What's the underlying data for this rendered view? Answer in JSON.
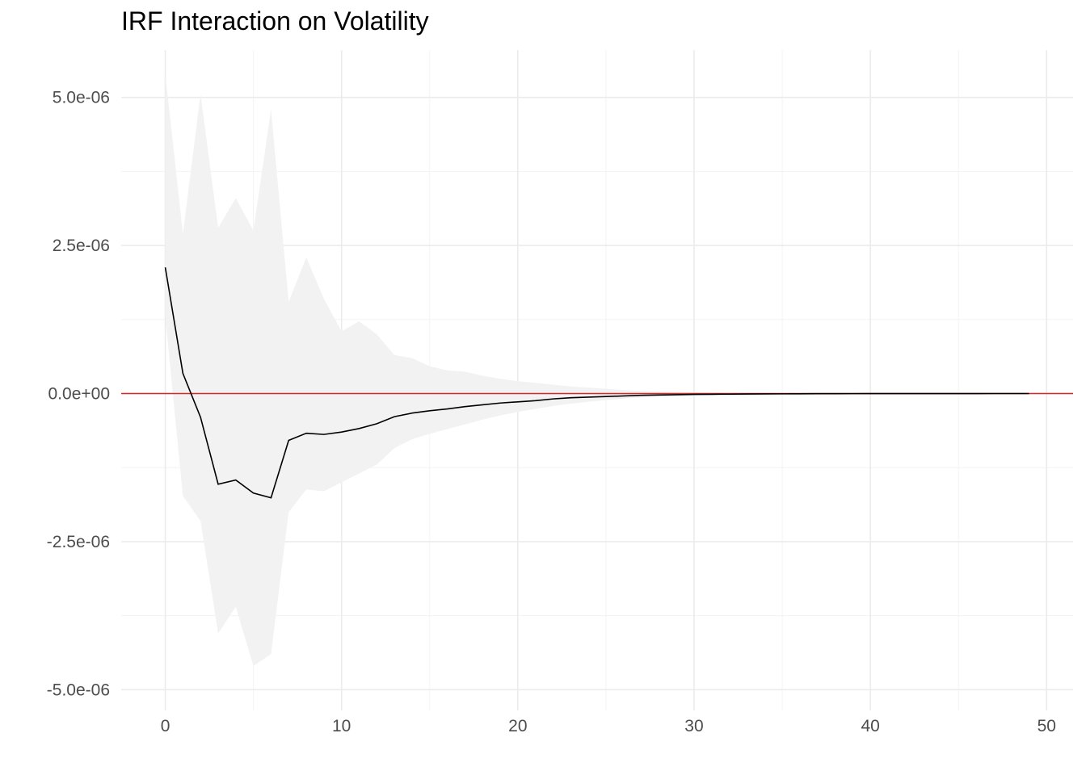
{
  "chart_data": {
    "type": "line",
    "title": "IRF Interaction on Volatility",
    "xlabel": "",
    "ylabel": "",
    "xlim": [
      -2.5,
      51.5
    ],
    "ylim": [
      -5.35e-06,
      5.8e-06
    ],
    "x_ticks": [
      0,
      10,
      20,
      30,
      40,
      50
    ],
    "x_tick_labels": [
      "0",
      "10",
      "20",
      "30",
      "40",
      "50"
    ],
    "y_ticks": [
      -5e-06,
      -2.5e-06,
      0,
      2.5e-06,
      5e-06
    ],
    "y_tick_labels": [
      "-5.0e-06",
      "-2.5e-06",
      "0.0e+00",
      "2.5e-06",
      "5.0e-06"
    ],
    "grid": true,
    "legend": "none",
    "reference_line": {
      "y": 0,
      "color": "#d62728"
    },
    "series": [
      {
        "style": "line",
        "color": "#000000",
        "x": [
          0,
          1,
          2,
          3,
          4,
          5,
          6,
          7,
          8,
          9,
          10,
          11,
          12,
          13,
          14,
          15,
          16,
          17,
          18,
          19,
          20,
          21,
          22,
          23,
          24,
          25,
          26,
          27,
          28,
          29,
          30,
          31,
          32,
          33,
          34,
          35,
          36,
          37,
          38,
          39,
          40,
          41,
          42,
          43,
          44,
          45,
          46,
          47,
          48,
          49
        ],
        "values": [
          2.13e-06,
          3.4e-07,
          -4e-07,
          -1.53e-06,
          -1.46e-06,
          -1.68e-06,
          -1.76e-06,
          -7.9e-07,
          -6.7e-07,
          -6.9e-07,
          -6.5e-07,
          -5.9e-07,
          -5.1e-07,
          -3.9e-07,
          -3.3e-07,
          -2.9e-07,
          -2.6e-07,
          -2.2e-07,
          -1.9e-07,
          -1.6e-07,
          -1.4e-07,
          -1.2e-07,
          -9e-08,
          -7e-08,
          -6e-08,
          -5e-08,
          -4e-08,
          -3e-08,
          -2.5e-08,
          -2e-08,
          -1.5e-08,
          -1.2e-08,
          -1e-08,
          -8e-09,
          -6e-09,
          -5e-09,
          -4e-09,
          -3e-09,
          -2e-09,
          -1.5e-09,
          -1e-09,
          -8e-10,
          -6e-10,
          -4e-10,
          -3e-10,
          -2e-10,
          -1.5e-10,
          -1e-10,
          -5e-11,
          -2e-11
        ]
      }
    ],
    "band": {
      "color": "#f2f2f2",
      "x": [
        0,
        1,
        2,
        3,
        4,
        5,
        6,
        7,
        8,
        9,
        10,
        11,
        12,
        13,
        14,
        15,
        16,
        17,
        18,
        19,
        20,
        21,
        22,
        23,
        24,
        25,
        26,
        27,
        28,
        29,
        30,
        31,
        32,
        33,
        34,
        35,
        36,
        37,
        38,
        39,
        40,
        41,
        42,
        43,
        44,
        45,
        46,
        47,
        48,
        49
      ],
      "upper": [
        5.4e-06,
        2.7e-06,
        5.05e-06,
        2.8e-06,
        3.3e-06,
        2.75e-06,
        4.8e-06,
        1.55e-06,
        2.3e-06,
        1.6e-06,
        1.05e-06,
        1.22e-06,
        1e-06,
        6.5e-07,
        6e-07,
        4.6e-07,
        3.9e-07,
        3.7e-07,
        3e-07,
        2.5e-07,
        2.1e-07,
        1.8e-07,
        1.5e-07,
        1.2e-07,
        1e-07,
        8e-08,
        6e-08,
        4.5e-08,
        3.5e-08,
        2.5e-08,
        2e-08,
        1.5e-08,
        1.2e-08,
        1e-08,
        8e-09,
        6e-09,
        5e-09,
        4e-09,
        3e-09,
        2e-09,
        1.5e-09,
        1e-09,
        8e-10,
        6e-10,
        4e-10,
        3e-10,
        2e-10,
        1.5e-10,
        1e-10,
        5e-11
      ],
      "lower": [
        1.3e-06,
        -1.73e-06,
        -2.15e-06,
        -4.05e-06,
        -3.6e-06,
        -4.6e-06,
        -4.4e-06,
        -2e-06,
        -1.62e-06,
        -1.65e-06,
        -1.5e-06,
        -1.35e-06,
        -1.2e-06,
        -9.2e-07,
        -7.7e-07,
        -6.8e-07,
        -6e-07,
        -5.2e-07,
        -4.4e-07,
        -3.7e-07,
        -3.1e-07,
        -2.6e-07,
        -2.1e-07,
        -1.7e-07,
        -1.4e-07,
        -1.1e-07,
        -8.5e-08,
        -6.5e-08,
        -5e-08,
        -4e-08,
        -3e-08,
        -2.4e-08,
        -1.9e-08,
        -1.5e-08,
        -1.2e-08,
        -9e-09,
        -7e-09,
        -5.5e-09,
        -4e-09,
        -3e-09,
        -2.2e-09,
        -1.6e-09,
        -1.2e-09,
        -9e-10,
        -7e-10,
        -5e-10,
        -3.5e-10,
        -2.5e-10,
        -1.5e-10,
        -8e-11
      ]
    }
  }
}
